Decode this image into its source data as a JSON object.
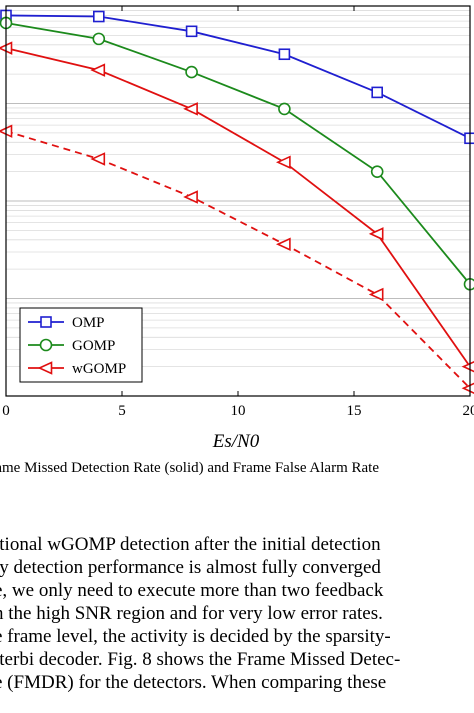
{
  "figure": {
    "xlabel": "Es/N0",
    "legend": [
      "OMP",
      "GOMP",
      "wGOMP"
    ],
    "caption": "Frame Missed Detection Rate (solid) and Frame False Alarm Rate"
  },
  "chart_data": {
    "type": "line",
    "x": [
      0,
      4,
      8,
      12,
      16,
      20
    ],
    "xticks": [
      "0",
      "5",
      "10",
      "15",
      "20"
    ],
    "xlim": [
      0,
      20
    ],
    "yscale": "log",
    "ylim": [
      0.0001,
      1
    ],
    "grid": true,
    "legend_position": "bottom-left",
    "series": [
      {
        "name": "OMP",
        "style": "solid",
        "marker": "square",
        "color": "#1f1fd0",
        "values": [
          0.8,
          0.78,
          0.55,
          0.32,
          0.13,
          0.044
        ]
      },
      {
        "name": "GOMP",
        "style": "solid",
        "marker": "circle",
        "color": "#1c8a1c",
        "values": [
          0.67,
          0.46,
          0.21,
          0.088,
          0.02,
          0.0014
        ]
      },
      {
        "name": "wGOMP",
        "style": "solid",
        "marker": "triangle-left",
        "color": "#e01010",
        "values": [
          0.37,
          0.22,
          0.088,
          0.025,
          0.0046,
          0.0002
        ]
      },
      {
        "style": "dashed",
        "marker": "triangle-left",
        "color": "#e01010",
        "values": [
          0.052,
          0.027,
          0.011,
          0.0036,
          0.0011,
          0.00012
        ]
      }
    ]
  },
  "text": {
    "lines": [
      "itional wGOMP detection after the initial detection",
      "ty detection performance is almost fully converged",
      "e, we only need to execute more than two feedback",
      "n the high SNR region and for very low error rates.",
      "e frame level, the activity is decided by the sparsity-",
      "iterbi decoder. Fig. 8 shows the Frame Missed Detec-",
      "e (FMDR) for the detectors. When comparing these"
    ]
  }
}
